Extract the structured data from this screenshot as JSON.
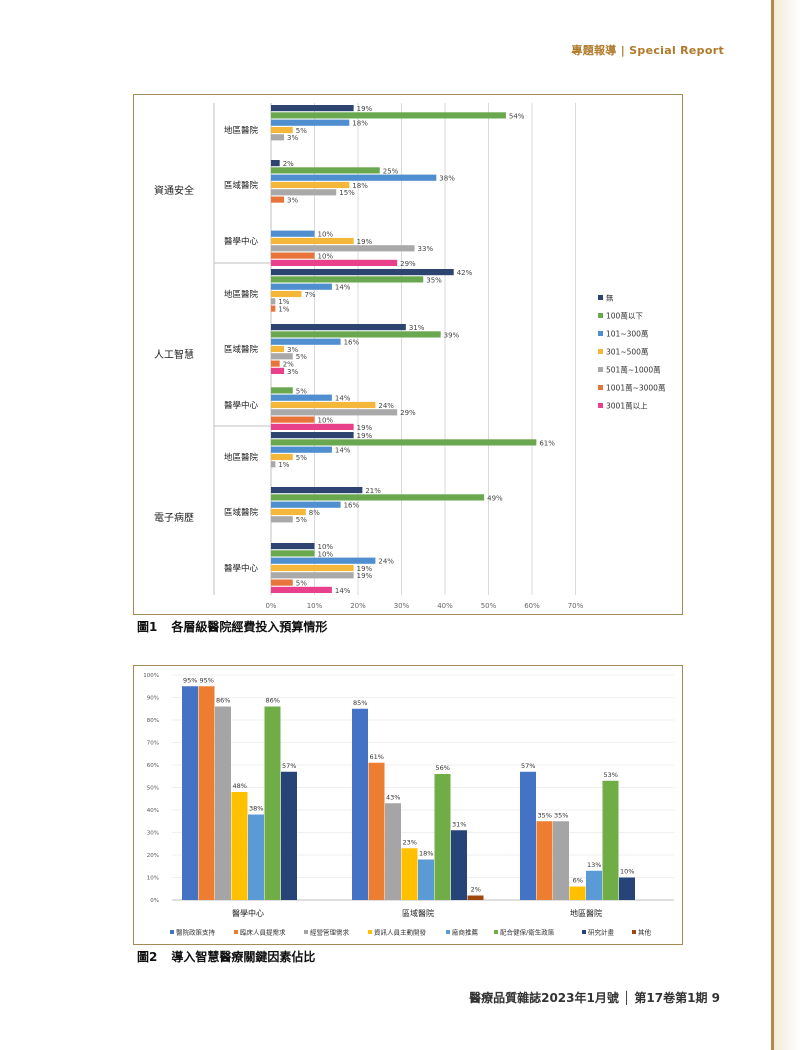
{
  "header": "專題報導 | Special Report",
  "footer": "醫療品質雜誌2023年1月號 │ 第17卷第1期 9",
  "figure1": {
    "caption_num": "圖1",
    "caption_text": "各層級醫院經費投入預算情形"
  },
  "figure2": {
    "caption_num": "圖2",
    "caption_text": "導入智慧醫療關鍵因素佔比"
  },
  "colors": {
    "navy": "#2e4470",
    "green": "#6aa84f",
    "blue": "#4f8fd0",
    "orange_yellow": "#f5b73a",
    "gray": "#a9a9a9",
    "orange": "#e8743b",
    "pink": "#e8408a",
    "bar_blue": "#4472c4",
    "bar_orange": "#ed7d31",
    "bar_gray": "#a5a5a5",
    "bar_yellow": "#ffc000",
    "bar_lightblue": "#5b9bd5",
    "bar_green": "#70ad47",
    "bar_navy": "#264478",
    "bar_rust": "#9e480e",
    "frame": "#a68a55",
    "gold": "#b08a4a"
  },
  "chart_data": [
    {
      "type": "bar",
      "orientation": "horizontal",
      "xlim": [
        0,
        70
      ],
      "x_ticks": [
        "0%",
        "10%",
        "20%",
        "30%",
        "40%",
        "50%",
        "60%",
        "70%"
      ],
      "legend": [
        "無",
        "100萬以下",
        "101~300萬",
        "301~500萬",
        "501萬~1000萬",
        "1001萬~3000萬",
        "3001萬以上"
      ],
      "legend_placement": "right",
      "groups": [
        {
          "label": "資通安全",
          "subgroups": [
            {
              "label": "地區醫院",
              "values": [
                19,
                54,
                18,
                5,
                3,
                null,
                null
              ]
            },
            {
              "label": "區域醫院",
              "values": [
                2,
                25,
                38,
                18,
                15,
                3,
                null
              ]
            },
            {
              "label": "醫學中心",
              "values": [
                null,
                null,
                10,
                19,
                33,
                10,
                29
              ]
            }
          ]
        },
        {
          "label": "人工智慧",
          "subgroups": [
            {
              "label": "地區醫院",
              "values": [
                42,
                35,
                14,
                7,
                1,
                1,
                null
              ]
            },
            {
              "label": "區域醫院",
              "values": [
                31,
                39,
                16,
                3,
                5,
                2,
                3
              ]
            },
            {
              "label": "醫學中心",
              "values": [
                null,
                5,
                14,
                24,
                29,
                10,
                19
              ]
            }
          ]
        },
        {
          "label": "電子病歷",
          "subgroups": [
            {
              "label": "地區醫院",
              "values": [
                19,
                61,
                14,
                5,
                1,
                null,
                null
              ]
            },
            {
              "label": "區域醫院",
              "values": [
                21,
                49,
                16,
                8,
                5,
                null,
                null
              ]
            },
            {
              "label": "醫學中心",
              "values": [
                10,
                10,
                24,
                19,
                19,
                5,
                14
              ]
            }
          ]
        }
      ]
    },
    {
      "type": "bar",
      "orientation": "vertical",
      "ylim": [
        0,
        100
      ],
      "y_ticks": [
        "0%",
        "10%",
        "20%",
        "30%",
        "40%",
        "50%",
        "60%",
        "70%",
        "80%",
        "90%",
        "100%"
      ],
      "categories": [
        "醫學中心",
        "區域醫院",
        "地區醫院"
      ],
      "legend_placement": "bottom",
      "series": [
        {
          "name": "醫院政策支持",
          "values": [
            95,
            85,
            57
          ]
        },
        {
          "name": "臨床人員提需求",
          "values": [
            95,
            61,
            35
          ]
        },
        {
          "name": "經營管理需求",
          "values": [
            86,
            43,
            35
          ]
        },
        {
          "name": "資訊人員主動開發",
          "values": [
            48,
            23,
            6
          ]
        },
        {
          "name": "廠商推薦",
          "values": [
            38,
            18,
            13
          ]
        },
        {
          "name": "配合健保/衛生政策",
          "values": [
            86,
            56,
            53
          ]
        },
        {
          "name": "研究計畫",
          "values": [
            57,
            31,
            10
          ]
        },
        {
          "name": "其他",
          "values": [
            null,
            2,
            null
          ]
        }
      ]
    }
  ]
}
